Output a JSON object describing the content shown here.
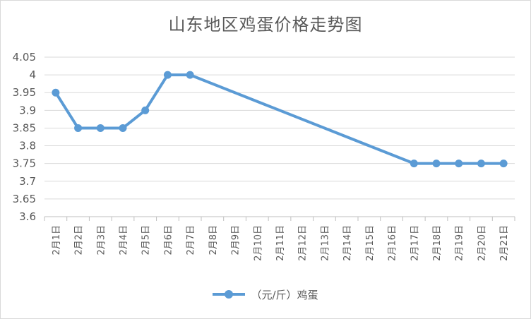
{
  "chart_data": {
    "type": "line",
    "title": "山东地区鸡蛋价格走势图",
    "categories": [
      "2月1日",
      "2月2日",
      "2月3日",
      "2月4日",
      "2月5日",
      "2月6日",
      "2月7日",
      "2月8日",
      "2月9日",
      "2月10日",
      "2月11日",
      "2月12日",
      "2月13日",
      "2月14日",
      "2月15日",
      "2月16日",
      "2月17日",
      "2月18日",
      "2月19日",
      "2月20日",
      "2月21日"
    ],
    "series": [
      {
        "name": "（元/斤）鸡蛋",
        "color": "#5b9bd5",
        "values": [
          3.95,
          3.85,
          3.85,
          3.85,
          3.9,
          4.0,
          4.0,
          null,
          null,
          null,
          null,
          null,
          null,
          null,
          null,
          null,
          3.75,
          3.75,
          3.75,
          3.75,
          3.75
        ]
      }
    ],
    "ylim": [
      3.6,
      4.05
    ],
    "yticks": [
      "3.6",
      "3.65",
      "3.7",
      "3.75",
      "3.8",
      "3.85",
      "3.9",
      "3.95",
      "4",
      "4.05"
    ],
    "grid": true,
    "legend": "bottom",
    "gap_mode": "connect"
  }
}
